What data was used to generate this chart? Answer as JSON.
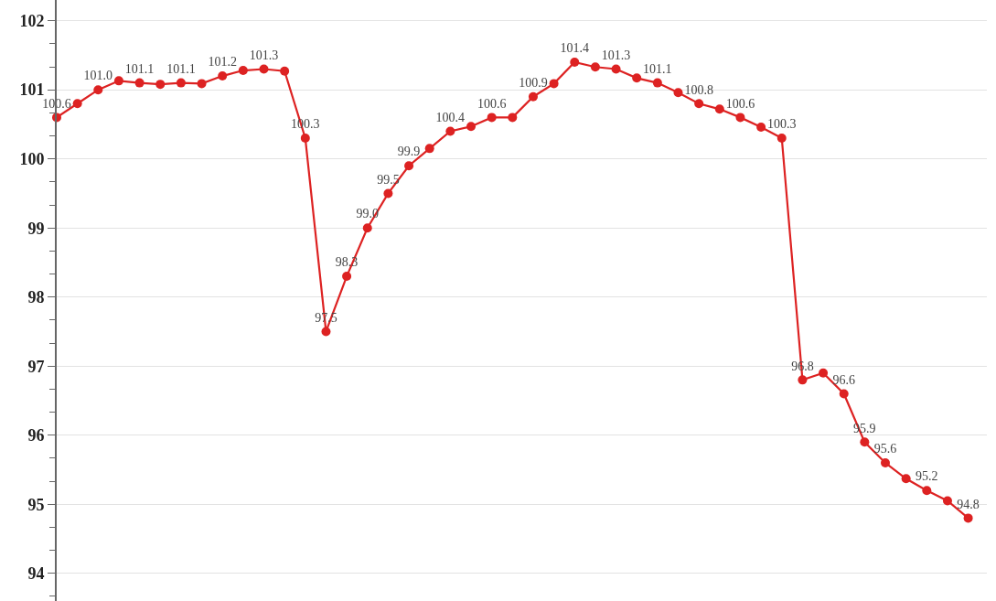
{
  "chart_data": {
    "type": "line",
    "categories": [
      null,
      null,
      null,
      null,
      null,
      null,
      null,
      null,
      null,
      null,
      null,
      null,
      null,
      null,
      null,
      null,
      null,
      null,
      null,
      null,
      null,
      null,
      null,
      null,
      null,
      null,
      null,
      null,
      null,
      null,
      null,
      null,
      null,
      null,
      null,
      null,
      null,
      null,
      null,
      null,
      null,
      null,
      null,
      null,
      null
    ],
    "series": [
      {
        "color": "#dd2222",
        "values": [
          100.6,
          100.8,
          101.0,
          101.13,
          101.1,
          101.08,
          101.1,
          101.09,
          101.2,
          101.28,
          101.3,
          101.27,
          100.3,
          97.5,
          98.3,
          99.0,
          99.5,
          99.9,
          100.15,
          100.4,
          100.47,
          100.6,
          100.6,
          100.9,
          101.09,
          101.4,
          101.33,
          101.3,
          101.17,
          101.1,
          100.96,
          100.8,
          100.72,
          100.6,
          100.46,
          100.3,
          96.8,
          96.9,
          96.6,
          95.9,
          95.6,
          95.37,
          95.2,
          95.05,
          94.8
        ],
        "value_labels": [
          "100.6",
          null,
          "101.0",
          null,
          "101.1",
          null,
          "101.1",
          null,
          "101.2",
          null,
          "101.3",
          null,
          "100.3",
          "97.5",
          "98.3",
          "99.0",
          "99.5",
          "99.9",
          null,
          "100.4",
          null,
          "100.6",
          null,
          "100.9",
          null,
          "101.4",
          null,
          "101.3",
          null,
          "101.1",
          null,
          "100.8",
          null,
          "100.6",
          null,
          "100.3",
          "96.8",
          null,
          "96.6",
          "95.9",
          "95.6",
          null,
          "95.2",
          null,
          "94.8"
        ]
      }
    ],
    "ylim": [
      93.6,
      102.3
    ],
    "yticks": [
      94,
      95,
      96,
      97,
      98,
      99,
      100,
      101,
      102
    ],
    "grid": "y",
    "marker": "circle",
    "line_style": "solid",
    "tick_labels": "y"
  }
}
